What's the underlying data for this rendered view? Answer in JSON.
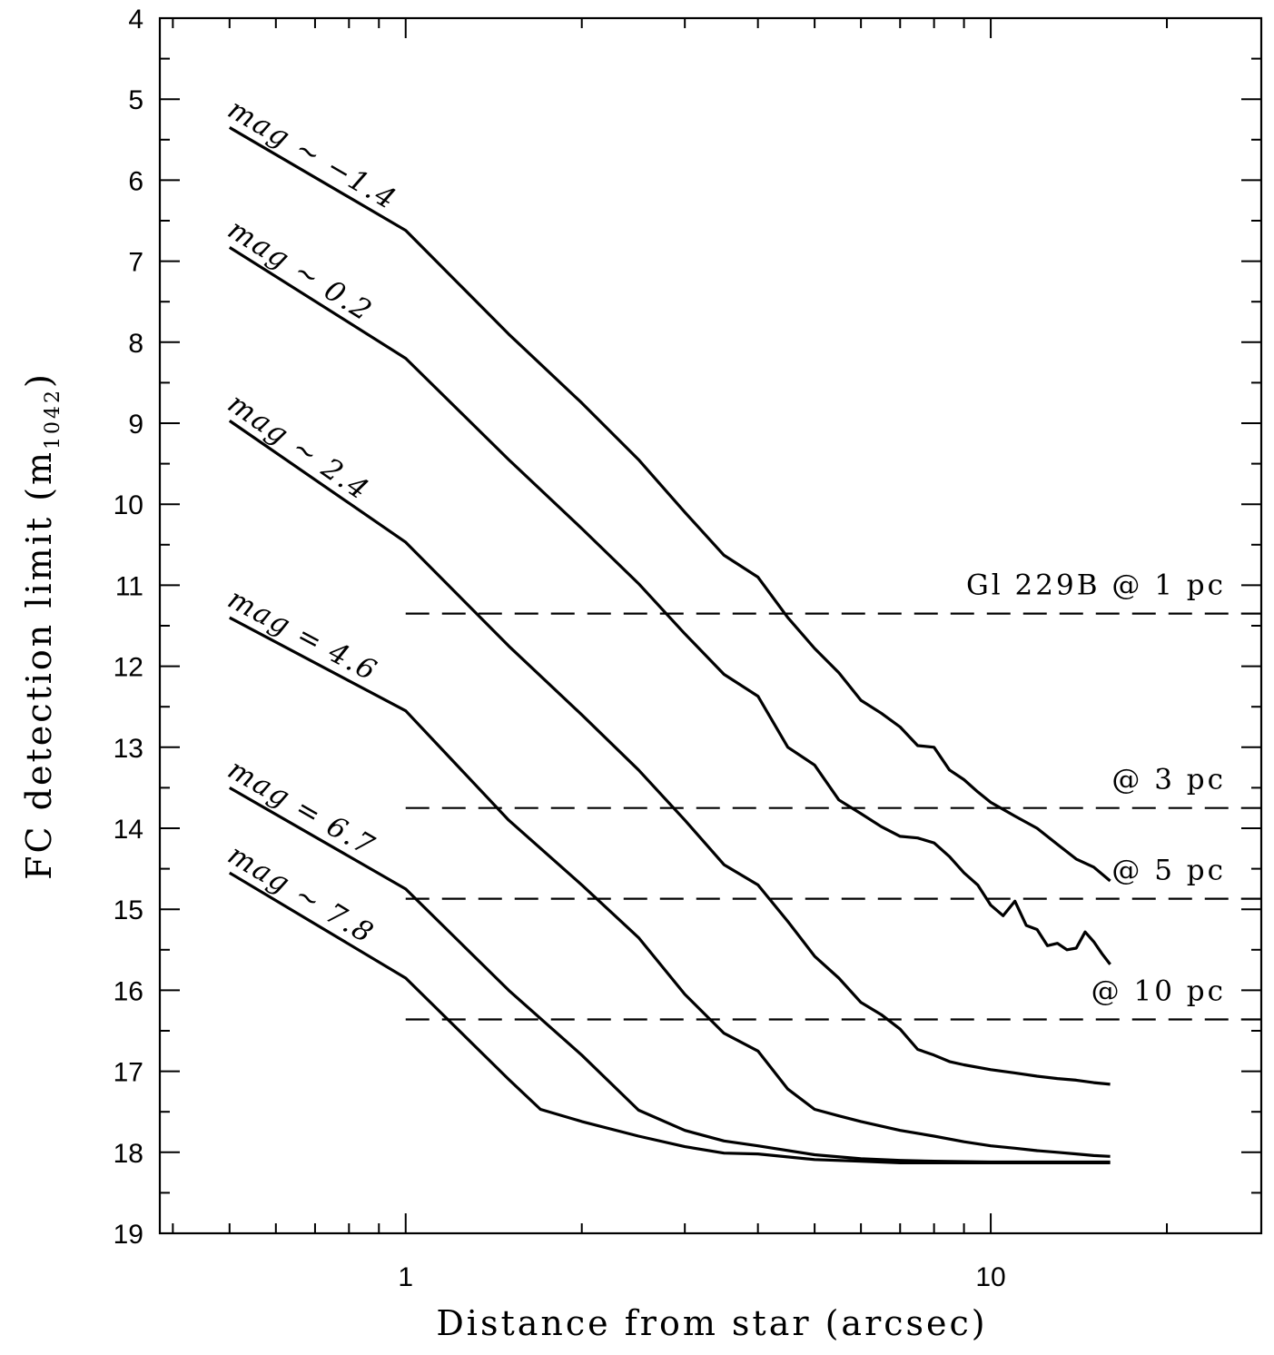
{
  "chart_data": {
    "type": "line",
    "title": "",
    "xlabel": "Distance from star (arcsec)",
    "ylabel": "FC detection limit (m",
    "ylabel_subscript": "1042",
    "ylabel_close": ")",
    "xscale": "log",
    "xlim": [
      0.38,
      29
    ],
    "ylim": [
      4,
      19
    ],
    "y_inverted": true,
    "x_tick_labels": [
      {
        "value": 1,
        "label": "1"
      },
      {
        "value": 10,
        "label": "10"
      }
    ],
    "y_tick_labels": [
      "4",
      "5",
      "6",
      "7",
      "8",
      "9",
      "10",
      "11",
      "12",
      "13",
      "14",
      "15",
      "16",
      "17",
      "18",
      "19"
    ],
    "series": [
      {
        "name": "mag ~ −1.4",
        "x": [
          0.5,
          1.0,
          1.5,
          2.0,
          2.5,
          3.0,
          3.5,
          4.0,
          4.5,
          5.0,
          5.5,
          6.0,
          6.5,
          7.0,
          7.5,
          8.0,
          8.5,
          9.0,
          9.5,
          10.0,
          11.0,
          12.0,
          13.0,
          14.0,
          15.0,
          16.0
        ],
        "y": [
          5.35,
          6.62,
          7.9,
          8.75,
          9.45,
          10.1,
          10.63,
          10.9,
          11.4,
          11.78,
          12.08,
          12.42,
          12.58,
          12.75,
          12.98,
          13.0,
          13.28,
          13.4,
          13.55,
          13.68,
          13.85,
          14.0,
          14.2,
          14.38,
          14.48,
          14.65
        ]
      },
      {
        "name": "mag ~ 0.2",
        "x": [
          0.5,
          1.0,
          1.5,
          2.0,
          2.5,
          3.0,
          3.5,
          4.0,
          4.5,
          5.0,
          5.5,
          6.0,
          6.5,
          7.0,
          7.5,
          8.0,
          8.5,
          9.0,
          9.5,
          10.0,
          10.5,
          11.0,
          11.5,
          12.0,
          12.5,
          13.0,
          13.5,
          14.0,
          14.5,
          15.0,
          15.5,
          16.0
        ],
        "y": [
          6.83,
          8.2,
          9.45,
          10.3,
          10.98,
          11.6,
          12.1,
          12.37,
          13.0,
          13.22,
          13.65,
          13.82,
          13.98,
          14.1,
          14.12,
          14.18,
          14.35,
          14.55,
          14.7,
          14.95,
          15.08,
          14.9,
          15.2,
          15.25,
          15.45,
          15.42,
          15.5,
          15.48,
          15.28,
          15.4,
          15.55,
          15.68
        ]
      },
      {
        "name": "mag ~ 2.4",
        "x": [
          0.5,
          1.0,
          1.5,
          2.0,
          2.5,
          3.0,
          3.5,
          4.0,
          4.5,
          5.0,
          5.5,
          6.0,
          6.5,
          7.0,
          7.5,
          8.0,
          8.5,
          9.0,
          10.0,
          11.0,
          12.0,
          13.0,
          14.0,
          15.0,
          16.0
        ],
        "y": [
          8.97,
          10.47,
          11.75,
          12.6,
          13.28,
          13.9,
          14.45,
          14.7,
          15.15,
          15.58,
          15.85,
          16.15,
          16.3,
          16.48,
          16.73,
          16.8,
          16.88,
          16.92,
          16.98,
          17.02,
          17.06,
          17.09,
          17.11,
          17.14,
          17.16
        ]
      },
      {
        "name": "mag = 4.6",
        "x": [
          0.5,
          1.0,
          1.5,
          2.0,
          2.5,
          3.0,
          3.5,
          4.0,
          4.5,
          5.0,
          5.5,
          6.0,
          7.0,
          8.0,
          9.0,
          10.0,
          11.0,
          12.0,
          13.0,
          14.0,
          15.0,
          16.0
        ],
        "y": [
          11.4,
          12.55,
          13.9,
          14.7,
          15.35,
          16.05,
          16.53,
          16.75,
          17.22,
          17.47,
          17.55,
          17.62,
          17.73,
          17.8,
          17.87,
          17.92,
          17.95,
          17.98,
          18.0,
          18.02,
          18.04,
          18.05
        ]
      },
      {
        "name": "mag = 6.7",
        "x": [
          0.5,
          1.0,
          1.5,
          2.0,
          2.5,
          3.0,
          3.5,
          4.0,
          5.0,
          6.0,
          7.0,
          8.0,
          10.0,
          12.0,
          14.0,
          16.0
        ],
        "y": [
          13.5,
          14.75,
          16.0,
          16.8,
          17.48,
          17.73,
          17.86,
          17.92,
          18.03,
          18.08,
          18.1,
          18.11,
          18.12,
          18.12,
          18.12,
          18.12
        ]
      },
      {
        "name": "mag ~ 7.8",
        "x": [
          0.5,
          1.0,
          1.5,
          1.7,
          2.0,
          2.5,
          3.0,
          3.5,
          4.0,
          5.0,
          6.0,
          7.0,
          8.0,
          10.0,
          12.0,
          14.0,
          16.0
        ],
        "y": [
          14.55,
          15.85,
          17.1,
          17.47,
          17.62,
          17.8,
          17.93,
          18.01,
          18.02,
          18.09,
          18.11,
          18.13,
          18.13,
          18.13,
          18.13,
          18.13,
          18.13
        ]
      }
    ],
    "reference_lines": [
      {
        "label": "Gl 229B @ 1 pc",
        "y": 11.35,
        "x_start": 1.0
      },
      {
        "label": "@ 3 pc",
        "y": 13.75,
        "x_start": 1.0
      },
      {
        "label": "@ 5 pc",
        "y": 14.87,
        "x_start": 1.0
      },
      {
        "label": "@ 10 pc",
        "y": 16.36,
        "x_start": 1.0
      }
    ],
    "grid": false,
    "legend": "none"
  }
}
